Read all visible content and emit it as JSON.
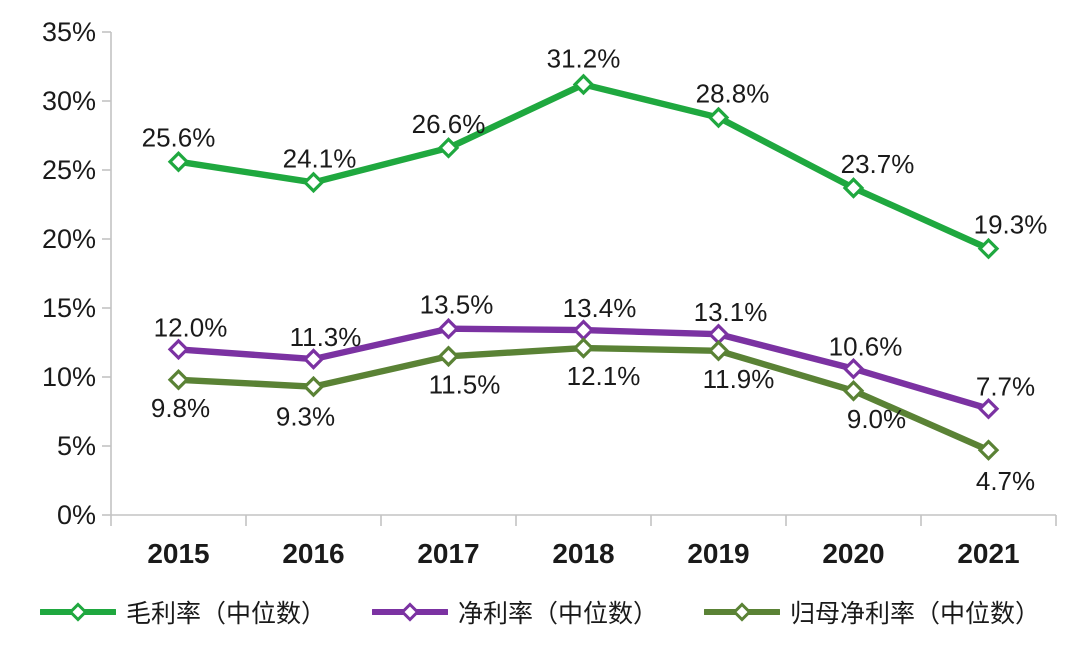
{
  "chart_data": {
    "type": "line",
    "title": "",
    "xlabel": "",
    "ylabel": "",
    "categories": [
      "2015",
      "2016",
      "2017",
      "2018",
      "2019",
      "2020",
      "2021"
    ],
    "series": [
      {
        "name": "毛利率（中位数）",
        "color": "#1FA83F",
        "values": [
          25.6,
          24.1,
          26.6,
          31.2,
          28.8,
          23.7,
          19.3
        ],
        "labels": [
          "25.6%",
          "24.1%",
          "26.6%",
          "31.2%",
          "28.8%",
          "23.7%",
          "19.3%"
        ],
        "label_side": "above"
      },
      {
        "name": "净利率（中位数）",
        "color": "#7B32A2",
        "values": [
          12.0,
          11.3,
          13.5,
          13.4,
          13.1,
          10.6,
          7.7
        ],
        "labels": [
          "12.0%",
          "11.3%",
          "13.5%",
          "13.4%",
          "13.1%",
          "10.6%",
          "7.7%"
        ],
        "label_side": "above"
      },
      {
        "name": "归母净利率（中位数）",
        "color": "#5A8235",
        "values": [
          9.8,
          9.3,
          11.5,
          12.1,
          11.9,
          9.0,
          4.7
        ],
        "labels": [
          "9.8%",
          "9.3%",
          "11.5%",
          "12.1%",
          "11.9%",
          "9.0%",
          "4.7%"
        ],
        "label_side": "below"
      }
    ],
    "y_ticks": [
      "35%",
      "30%",
      "25%",
      "20%",
      "15%",
      "10%",
      "5%",
      "0%"
    ],
    "ylim": [
      0,
      35
    ],
    "grid": false,
    "marker": "open-diamond",
    "legend_position": "bottom",
    "axis_color": "#c3c3c3",
    "text_color": "#1a1a1a"
  }
}
